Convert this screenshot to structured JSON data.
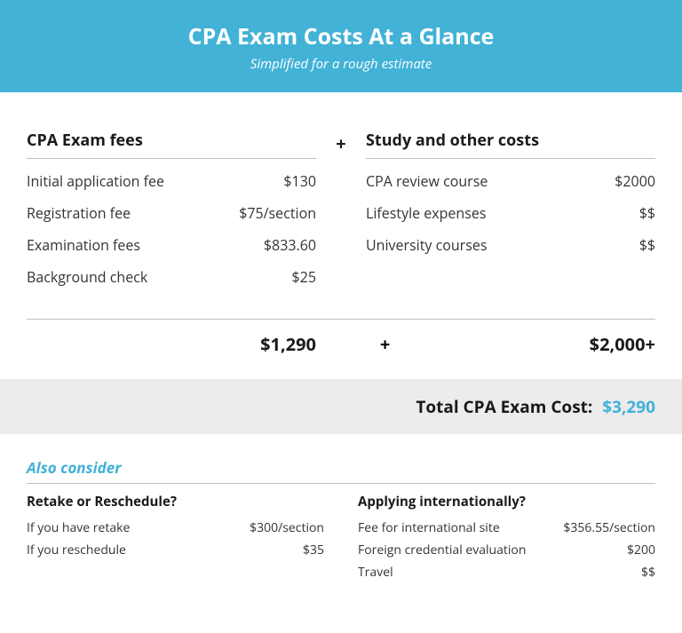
{
  "header": {
    "title": "CPA Exam Costs At a Glance",
    "subtitle": "Simplified for a rough estimate"
  },
  "left": {
    "title": "CPA Exam fees",
    "rows": [
      {
        "label": "Initial application fee",
        "value": "$130"
      },
      {
        "label": "Registration fee",
        "value": "$75/section"
      },
      {
        "label": "Examination fees",
        "value": "$833.60"
      },
      {
        "label": "Background check",
        "value": "$25"
      }
    ],
    "subtotal": "$1,290"
  },
  "right": {
    "title": "Study and other costs",
    "rows": [
      {
        "label": "CPA review course",
        "value": "$2000"
      },
      {
        "label": "Lifestyle expenses",
        "value": "$$"
      },
      {
        "label": "University courses",
        "value": "$$"
      }
    ],
    "subtotal": "$2,000+"
  },
  "plus": "+",
  "total": {
    "label": "Total CPA Exam Cost:",
    "value": "$3,290"
  },
  "also": {
    "heading": "Also consider",
    "left": {
      "title": "Retake or Reschedule?",
      "rows": [
        {
          "label": "If you have retake",
          "value": "$300/section"
        },
        {
          "label": "If you reschedule",
          "value": "$35"
        }
      ]
    },
    "right": {
      "title": "Applying internationally?",
      "rows": [
        {
          "label": "Fee for international site",
          "value": "$356.55/section"
        },
        {
          "label": "Foreign credential evaluation",
          "value": "$200"
        },
        {
          "label": "Travel",
          "value": "$$"
        }
      ]
    }
  },
  "colors": {
    "accent": "#42b2d7",
    "text": "#1a1a1a",
    "body_text": "#333333",
    "divider": "#bfbfbf",
    "total_bg": "#ececec",
    "background": "#ffffff"
  }
}
